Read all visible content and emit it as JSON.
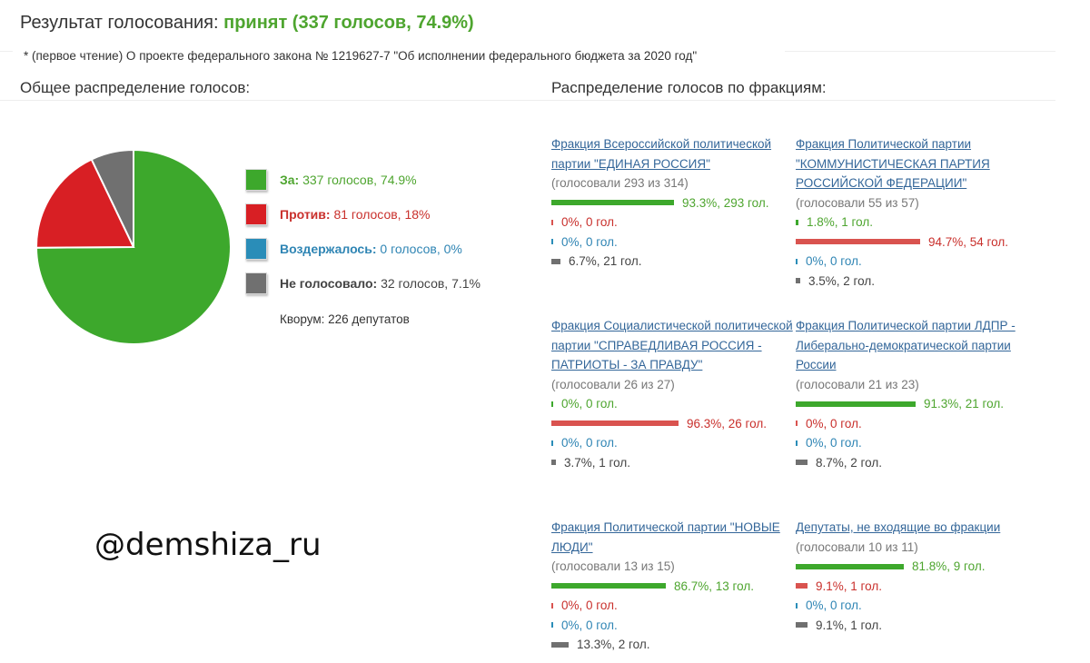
{
  "header": {
    "title_prefix": "Результат голосования:",
    "result": "принят (337 голосов, 74.9%)",
    "subtitle": "* (первое чтение) О проекте федерального закона № 1219627-7 \"Об исполнении федерального бюджета за 2020 год\""
  },
  "sections": {
    "overall": "Общее распределение голосов:",
    "factions": "Распределение голосов по фракциям:"
  },
  "colors": {
    "za": "#3da82c",
    "protiv": "#d81f24",
    "vozderzh": "#2a8db8",
    "ne": "#707070",
    "za_text": "#4ea52f",
    "protiv_text": "#c9302c",
    "vozderzh_text": "#2f85b4",
    "ne_text": "#444444"
  },
  "chart_data": {
    "type": "pie",
    "slices": [
      {
        "label": "За",
        "value": 337,
        "percent": 74.9
      },
      {
        "label": "Против",
        "value": 81,
        "percent": 18
      },
      {
        "label": "Воздержалось",
        "value": 0,
        "percent": 0
      },
      {
        "label": "Не голосовало",
        "value": 32,
        "percent": 7.1
      }
    ]
  },
  "legend": [
    {
      "key": "za",
      "label": "За:",
      "value": "337 голосов, 74.9%"
    },
    {
      "key": "protiv",
      "label": "Против:",
      "value": "81 голосов, 18%"
    },
    {
      "key": "vozderzh",
      "label": "Воздержалось:",
      "value": "0 голосов, 0%"
    },
    {
      "key": "ne",
      "label": "Не голосовало:",
      "value": "32 голосов, 7.1%"
    }
  ],
  "quorum": "Кворум: 226 депутатов",
  "watermark": "@demshiza_ru",
  "factions": [
    {
      "name": "Фракция Всероссийской политической партии \"ЕДИНАЯ РОССИЯ\"",
      "voted": "(голосовали 293 из 314)",
      "votes": [
        {
          "key": "za",
          "percent": 93.3,
          "text": "93.3%, 293 гол."
        },
        {
          "key": "protiv",
          "percent": 0,
          "text": "0%, 0 гол."
        },
        {
          "key": "vozderzh",
          "percent": 0,
          "text": "0%, 0 гол."
        },
        {
          "key": "ne",
          "percent": 6.7,
          "text": "6.7%, 21 гол."
        }
      ]
    },
    {
      "name": "Фракция Политической партии \"КОММУНИСТИЧЕСКАЯ ПАРТИЯ РОССИЙСКОЙ ФЕДЕРАЦИИ\"",
      "voted": "(голосовали 55 из 57)",
      "votes": [
        {
          "key": "za",
          "percent": 1.8,
          "text": "1.8%, 1 гол."
        },
        {
          "key": "protiv",
          "percent": 94.7,
          "text": "94.7%, 54 гол."
        },
        {
          "key": "vozderzh",
          "percent": 0,
          "text": "0%, 0 гол."
        },
        {
          "key": "ne",
          "percent": 3.5,
          "text": "3.5%, 2 гол."
        }
      ]
    },
    {
      "name": "Фракция Социалистической политической партии \"СПРАВЕДЛИВАЯ РОССИЯ - ПАТРИОТЫ - ЗА ПРАВДУ\"",
      "voted": "(голосовали 26 из 27)",
      "votes": [
        {
          "key": "za",
          "percent": 0,
          "text": "0%, 0 гол."
        },
        {
          "key": "protiv",
          "percent": 96.3,
          "text": "96.3%, 26 гол."
        },
        {
          "key": "vozderzh",
          "percent": 0,
          "text": "0%, 0 гол."
        },
        {
          "key": "ne",
          "percent": 3.7,
          "text": "3.7%, 1 гол."
        }
      ]
    },
    {
      "name": "Фракция Политической партии ЛДПР - Либерально-демократической партии России",
      "voted": "(голосовали 21 из 23)",
      "votes": [
        {
          "key": "za",
          "percent": 91.3,
          "text": "91.3%, 21 гол."
        },
        {
          "key": "protiv",
          "percent": 0,
          "text": "0%, 0 гол."
        },
        {
          "key": "vozderzh",
          "percent": 0,
          "text": "0%, 0 гол."
        },
        {
          "key": "ne",
          "percent": 8.7,
          "text": "8.7%, 2 гол."
        }
      ]
    },
    {
      "name": "Фракция Политической партии \"НОВЫЕ ЛЮДИ\"",
      "voted": "(голосовали 13 из 15)",
      "votes": [
        {
          "key": "za",
          "percent": 86.7,
          "text": "86.7%, 13 гол."
        },
        {
          "key": "protiv",
          "percent": 0,
          "text": "0%, 0 гол."
        },
        {
          "key": "vozderzh",
          "percent": 0,
          "text": "0%, 0 гол."
        },
        {
          "key": "ne",
          "percent": 13.3,
          "text": "13.3%, 2 гол."
        }
      ]
    },
    {
      "name": "Депутаты, не входящие во фракции",
      "voted": "(голосовали 10 из 11)",
      "votes": [
        {
          "key": "za",
          "percent": 81.8,
          "text": "81.8%, 9 гол."
        },
        {
          "key": "protiv",
          "percent": 9.1,
          "text": "9.1%, 1 гол."
        },
        {
          "key": "vozderzh",
          "percent": 0,
          "text": "0%, 0 гол."
        },
        {
          "key": "ne",
          "percent": 9.1,
          "text": "9.1%, 1 гол."
        }
      ]
    }
  ]
}
